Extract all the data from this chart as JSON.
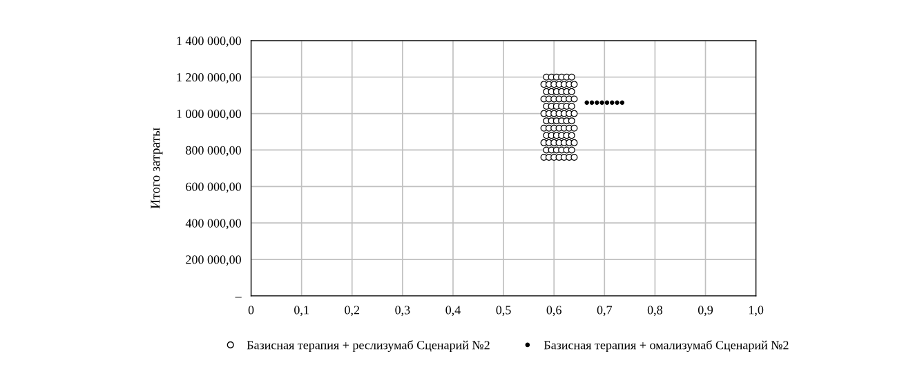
{
  "chart_data": {
    "type": "scatter",
    "ylabel": "Итого затраты",
    "xlim": [
      0,
      1.0
    ],
    "xticks": [
      {
        "value": 0,
        "label": "0"
      },
      {
        "value": 0.1,
        "label": "0,1"
      },
      {
        "value": 0.2,
        "label": "0,2"
      },
      {
        "value": 0.3,
        "label": "0,3"
      },
      {
        "value": 0.4,
        "label": "0,4"
      },
      {
        "value": 0.5,
        "label": "0,5"
      },
      {
        "value": 0.6,
        "label": "0,6"
      },
      {
        "value": 0.7,
        "label": "0,7"
      },
      {
        "value": 0.8,
        "label": "0,8"
      },
      {
        "value": 0.9,
        "label": "0,9"
      },
      {
        "value": 1.0,
        "label": "1,0"
      }
    ],
    "ylim": [
      0,
      1400000
    ],
    "yticks": [
      {
        "value": 0,
        "label": "–"
      },
      {
        "value": 200000,
        "label": "200 000,00"
      },
      {
        "value": 400000,
        "label": "400 000,00"
      },
      {
        "value": 600000,
        "label": "600 000,00"
      },
      {
        "value": 800000,
        "label": "800 000,00"
      },
      {
        "value": 1000000,
        "label": "1 000 000,00"
      },
      {
        "value": 1200000,
        "label": "1 200 000,00"
      },
      {
        "value": 1400000,
        "label": "1 400 000,00"
      }
    ],
    "grid": true,
    "legend": "bottom",
    "marker": "circle",
    "series": [
      {
        "name": "Базисная терапия + реслизумаб Сценарий №2",
        "color": "#ffffff",
        "x": [
          0.58,
          0.59,
          0.6,
          0.61,
          0.62,
          0.63,
          0.64,
          0.585,
          0.595,
          0.605,
          0.615,
          0.625,
          0.635,
          0.58,
          0.59,
          0.6,
          0.61,
          0.62,
          0.63,
          0.64,
          0.585,
          0.595,
          0.605,
          0.615,
          0.625,
          0.635,
          0.58,
          0.59,
          0.6,
          0.61,
          0.62,
          0.63,
          0.64,
          0.585,
          0.595,
          0.605,
          0.615,
          0.625,
          0.635,
          0.58,
          0.59,
          0.6,
          0.61,
          0.62,
          0.63,
          0.64,
          0.585,
          0.595,
          0.605,
          0.615,
          0.625,
          0.635,
          0.58,
          0.59,
          0.6,
          0.61,
          0.62,
          0.63,
          0.64,
          0.585,
          0.595,
          0.605,
          0.615,
          0.625,
          0.635,
          0.58,
          0.59,
          0.6,
          0.61,
          0.62,
          0.63,
          0.64,
          0.585,
          0.595,
          0.605,
          0.615,
          0.625,
          0.635
        ],
        "values": [
          760000,
          760000,
          760000,
          760000,
          760000,
          760000,
          760000,
          800000,
          800000,
          800000,
          800000,
          800000,
          800000,
          840000,
          840000,
          840000,
          840000,
          840000,
          840000,
          840000,
          880000,
          880000,
          880000,
          880000,
          880000,
          880000,
          920000,
          920000,
          920000,
          920000,
          920000,
          920000,
          920000,
          960000,
          960000,
          960000,
          960000,
          960000,
          960000,
          1000000,
          1000000,
          1000000,
          1000000,
          1000000,
          1000000,
          1000000,
          1040000,
          1040000,
          1040000,
          1040000,
          1040000,
          1040000,
          1080000,
          1080000,
          1080000,
          1080000,
          1080000,
          1080000,
          1080000,
          1120000,
          1120000,
          1120000,
          1120000,
          1120000,
          1120000,
          1160000,
          1160000,
          1160000,
          1160000,
          1160000,
          1160000,
          1160000,
          1200000,
          1200000,
          1200000,
          1200000,
          1200000,
          1200000
        ]
      },
      {
        "name": "Базисная терапия + омализумаб Сценарий №2",
        "color": "#000000",
        "x": [
          0.665,
          0.675,
          0.685,
          0.695,
          0.705,
          0.715,
          0.725,
          0.735
        ],
        "values": [
          1060000,
          1060000,
          1060000,
          1060000,
          1060000,
          1060000,
          1060000,
          1060000
        ]
      }
    ]
  }
}
